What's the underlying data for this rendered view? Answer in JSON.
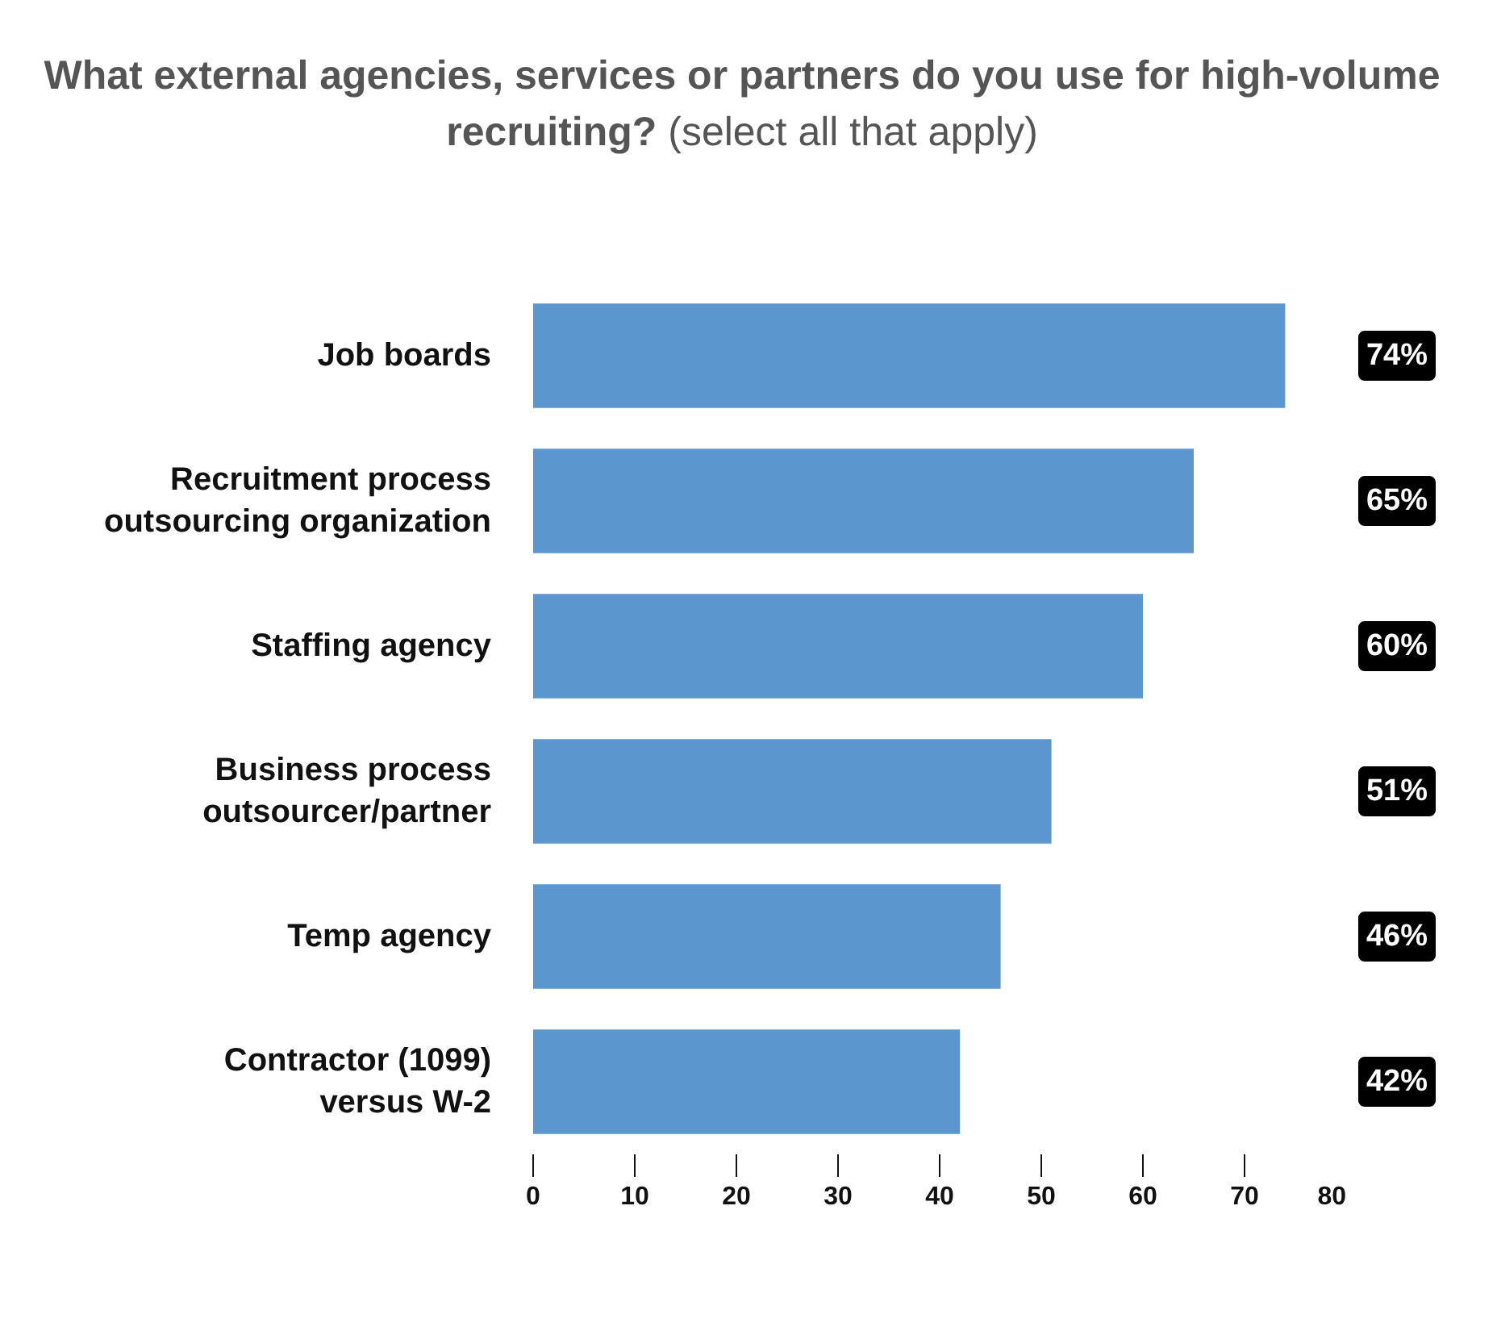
{
  "chart_data": {
    "type": "bar",
    "orientation": "horizontal",
    "title": "What external agencies, services or partners do you use for high-volume recruiting?",
    "subtitle": "(select all that apply)",
    "categories": [
      "Job boards",
      "Recruitment process\noutsourcing organization",
      "Staffing agency",
      "Business process\noutsourcer/partner",
      "Temp agency",
      "Contractor (1099)\nversus W-2"
    ],
    "values": [
      74,
      65,
      60,
      51,
      46,
      42
    ],
    "value_labels": [
      "74%",
      "65%",
      "60%",
      "51%",
      "46%",
      "42%"
    ],
    "color": "#5b96cf",
    "xlim": [
      0,
      80
    ],
    "xticks": [
      0,
      10,
      20,
      30,
      40,
      50,
      60,
      70,
      80
    ],
    "grid": false
  }
}
